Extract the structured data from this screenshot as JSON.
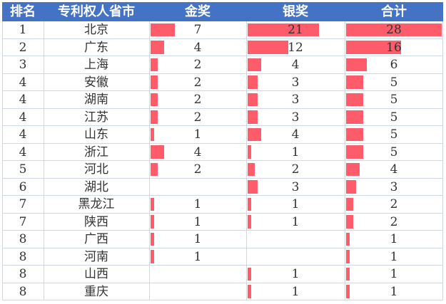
{
  "chart_data": {
    "type": "table",
    "headers": {
      "rank": "排名",
      "province": "专利权人省市",
      "gold": "金奖",
      "silver": "银奖",
      "total": "合计"
    },
    "rows": [
      {
        "rank": "1",
        "province": "北京",
        "gold": 7,
        "silver": 21,
        "total": 28
      },
      {
        "rank": "2",
        "province": "广东",
        "gold": 4,
        "silver": 12,
        "total": 16
      },
      {
        "rank": "3",
        "province": "上海",
        "gold": 2,
        "silver": 4,
        "total": 6
      },
      {
        "rank": "4",
        "province": "安徽",
        "gold": 2,
        "silver": 3,
        "total": 5
      },
      {
        "rank": "4",
        "province": "湖南",
        "gold": 2,
        "silver": 3,
        "total": 5
      },
      {
        "rank": "4",
        "province": "江苏",
        "gold": 2,
        "silver": 3,
        "total": 5
      },
      {
        "rank": "4",
        "province": "山东",
        "gold": 1,
        "silver": 4,
        "total": 5
      },
      {
        "rank": "4",
        "province": "浙江",
        "gold": 4,
        "silver": 1,
        "total": 5
      },
      {
        "rank": "5",
        "province": "河北",
        "gold": 2,
        "silver": 2,
        "total": 4
      },
      {
        "rank": "6",
        "province": "湖北",
        "gold": null,
        "silver": 3,
        "total": 3
      },
      {
        "rank": "7",
        "province": "黑龙江",
        "gold": 1,
        "silver": 1,
        "total": 2
      },
      {
        "rank": "7",
        "province": "陕西",
        "gold": 1,
        "silver": 1,
        "total": 2
      },
      {
        "rank": "8",
        "province": "广西",
        "gold": 1,
        "silver": null,
        "total": 1
      },
      {
        "rank": "8",
        "province": "河南",
        "gold": 1,
        "silver": null,
        "total": 1
      },
      {
        "rank": "8",
        "province": "山西",
        "gold": null,
        "silver": 1,
        "total": 1
      },
      {
        "rank": "8",
        "province": "重庆",
        "gold": null,
        "silver": 1,
        "total": 1
      }
    ],
    "bar_color": "#ff5c6b",
    "header_color": "#4472c4"
  }
}
